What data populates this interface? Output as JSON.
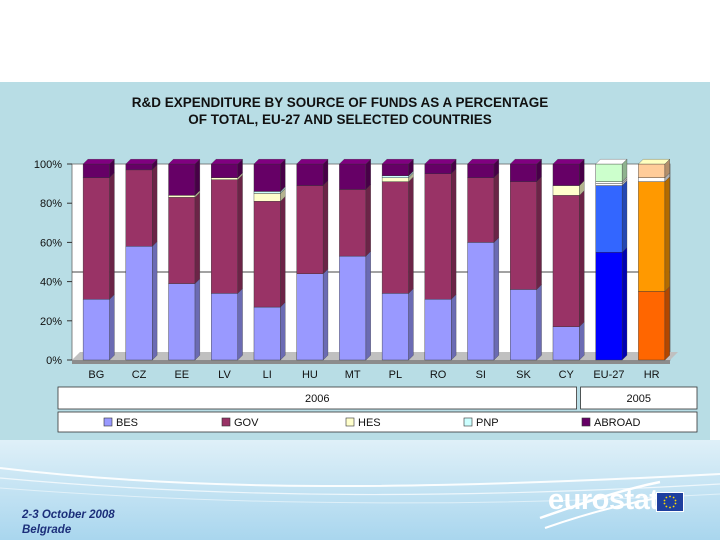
{
  "chart_data": {
    "type": "bar",
    "stacked": true,
    "percent": true,
    "title": [
      "R&D EXPENDITURE BY SOURCE OF FUNDS AS A PERCENTAGE",
      "OF TOTAL, EU-27 AND SELECTED COUNTRIES"
    ],
    "categories": [
      "BG",
      "CZ",
      "EE",
      "LV",
      "LI",
      "HU",
      "MT",
      "PL",
      "RO",
      "SI",
      "SK",
      "CY",
      "EU-27",
      "HR"
    ],
    "groups": [
      {
        "label": "2006",
        "categories": [
          "BG",
          "CZ",
          "EE",
          "LV",
          "LI",
          "HU",
          "MT",
          "PL",
          "RO",
          "SI",
          "SK",
          "CY"
        ]
      },
      {
        "label": "2005",
        "categories": [
          "EU-27",
          "HR"
        ]
      }
    ],
    "yticks": [
      "0%",
      "20%",
      "40%",
      "60%",
      "80%",
      "100%"
    ],
    "ylim": [
      0,
      100
    ],
    "legend": [
      "BES",
      "GOV",
      "HES",
      "PNP",
      "ABROAD"
    ],
    "legend_position": "bottom",
    "series": [
      {
        "name": "BES",
        "color": "#9999ff",
        "values": [
          31,
          58,
          39,
          34,
          27,
          44,
          53,
          34,
          31,
          60,
          36,
          17,
          55,
          35
        ]
      },
      {
        "name": "GOV",
        "color": "#993366",
        "values": [
          62,
          39,
          44,
          58,
          54,
          45,
          34,
          57,
          64,
          33,
          55,
          67,
          34,
          56
        ]
      },
      {
        "name": "HES",
        "color": "#ffffcc",
        "values": [
          0,
          0,
          1,
          1,
          4,
          0,
          0,
          2,
          0,
          0,
          0,
          5,
          1,
          2
        ]
      },
      {
        "name": "PNP",
        "color": "#ccffff",
        "values": [
          0,
          0,
          0,
          0,
          1,
          0,
          0,
          1,
          0,
          0,
          0,
          0,
          1,
          0
        ]
      },
      {
        "name": "ABROAD",
        "color": "#660066",
        "values": [
          7,
          3,
          16,
          7,
          14,
          11,
          13,
          6,
          5,
          7,
          9,
          11,
          9,
          7
        ]
      }
    ],
    "eu_colors": {
      "BES": "#0000ff",
      "GOV": "#3366ff",
      "HES": "#ffffff",
      "PNP": "#ffffff",
      "ABROAD": "#ccffcc"
    },
    "hr_colors": {
      "BES": "#ff6600",
      "GOV": "#ff9900",
      "HES": "#ffffff",
      "PNP": "#ffffff",
      "ABROAD": "#ffcc99"
    }
  },
  "footer": {
    "event_date": "2-3 October 2008",
    "event_city": "Belgrade",
    "logo_text": "eurostat"
  }
}
